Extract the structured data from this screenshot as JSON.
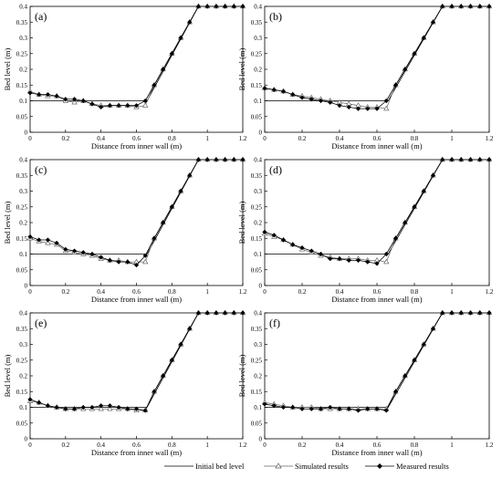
{
  "chart_data": [
    {
      "panel_label": "(a)",
      "type": "line",
      "xlabel": "Distance from inner wall (m)",
      "ylabel": "Bed level (m)",
      "xlim": [
        0,
        1.2
      ],
      "ylim": [
        0,
        0.4
      ],
      "x_ticks": [
        "0",
        "0.2",
        "0.4",
        "0.6",
        "0.8",
        "1",
        "1.2"
      ],
      "y_ticks": [
        "0",
        "0.05",
        "0.1",
        "0.15",
        "0.2",
        "0.25",
        "0.3",
        "0.35",
        "0.4"
      ],
      "series": [
        {
          "name": "Initial bed level",
          "x": [
            0,
            0.66,
            0.95,
            1.2
          ],
          "y": [
            0.1,
            0.1,
            0.4,
            0.4
          ]
        },
        {
          "name": "Simulated results",
          "x": [
            0,
            0.05,
            0.1,
            0.15,
            0.2,
            0.25,
            0.3,
            0.35,
            0.4,
            0.45,
            0.5,
            0.55,
            0.6,
            0.65,
            0.7,
            0.75,
            0.8,
            0.85,
            0.9,
            0.95,
            1.0,
            1.05,
            1.1,
            1.15,
            1.2
          ],
          "y": [
            0.13,
            0.12,
            0.115,
            0.115,
            0.1,
            0.095,
            0.1,
            0.09,
            0.085,
            0.085,
            0.085,
            0.085,
            0.08,
            0.085,
            0.15,
            0.2,
            0.25,
            0.3,
            0.35,
            0.4,
            0.4,
            0.4,
            0.4,
            0.4,
            0.4
          ]
        },
        {
          "name": "Measured results",
          "x": [
            0,
            0.05,
            0.1,
            0.15,
            0.2,
            0.25,
            0.3,
            0.35,
            0.4,
            0.45,
            0.5,
            0.55,
            0.6,
            0.65,
            0.7,
            0.75,
            0.8,
            0.85,
            0.9,
            0.95,
            1.0,
            1.05,
            1.1,
            1.15,
            1.2
          ],
          "y": [
            0.125,
            0.12,
            0.12,
            0.115,
            0.105,
            0.105,
            0.1,
            0.09,
            0.08,
            0.085,
            0.085,
            0.085,
            0.085,
            0.1,
            0.15,
            0.2,
            0.25,
            0.3,
            0.35,
            0.4,
            0.4,
            0.4,
            0.4,
            0.4,
            0.4
          ]
        }
      ]
    },
    {
      "panel_label": "(b)",
      "type": "line",
      "xlabel": "Distance from inner wall (m)",
      "ylabel": "Bed level (m)",
      "xlim": [
        0,
        1.2
      ],
      "ylim": [
        0,
        0.4
      ],
      "x_ticks": [
        "0",
        "0.2",
        "0.4",
        "0.6",
        "0.8",
        "1",
        "1.2"
      ],
      "y_ticks": [
        "0",
        "0.05",
        "0.1",
        "0.15",
        "0.2",
        "0.25",
        "0.3",
        "0.35",
        "0.4"
      ],
      "series": [
        {
          "name": "Initial bed level",
          "x": [
            0,
            0.66,
            0.95,
            1.2
          ],
          "y": [
            0.1,
            0.1,
            0.4,
            0.4
          ]
        },
        {
          "name": "Simulated results",
          "x": [
            0,
            0.05,
            0.1,
            0.15,
            0.2,
            0.25,
            0.3,
            0.35,
            0.4,
            0.45,
            0.5,
            0.55,
            0.6,
            0.65,
            0.7,
            0.75,
            0.8,
            0.85,
            0.9,
            0.95,
            1.0,
            1.05,
            1.1,
            1.15,
            1.2
          ],
          "y": [
            0.14,
            0.135,
            0.13,
            0.12,
            0.115,
            0.11,
            0.105,
            0.1,
            0.095,
            0.09,
            0.085,
            0.08,
            0.08,
            0.075,
            0.15,
            0.2,
            0.25,
            0.3,
            0.35,
            0.4,
            0.4,
            0.4,
            0.4,
            0.4,
            0.4
          ]
        },
        {
          "name": "Measured results",
          "x": [
            0,
            0.05,
            0.1,
            0.15,
            0.2,
            0.25,
            0.3,
            0.35,
            0.4,
            0.45,
            0.5,
            0.55,
            0.6,
            0.65,
            0.7,
            0.75,
            0.8,
            0.85,
            0.9,
            0.95,
            1.0,
            1.05,
            1.1,
            1.15,
            1.2
          ],
          "y": [
            0.14,
            0.135,
            0.13,
            0.12,
            0.11,
            0.105,
            0.1,
            0.095,
            0.085,
            0.08,
            0.075,
            0.075,
            0.075,
            0.1,
            0.15,
            0.2,
            0.25,
            0.3,
            0.35,
            0.4,
            0.4,
            0.4,
            0.4,
            0.4,
            0.4
          ]
        }
      ]
    },
    {
      "panel_label": "(c)",
      "type": "line",
      "xlabel": "Distance from inner wall (m)",
      "ylabel": "Bed level (m)",
      "xlim": [
        0,
        1.2
      ],
      "ylim": [
        0,
        0.4
      ],
      "x_ticks": [
        "0",
        "0.2",
        "0.4",
        "0.6",
        "0.8",
        "1",
        "1.2"
      ],
      "y_ticks": [
        "0",
        "0.05",
        "0.1",
        "0.15",
        "0.2",
        "0.25",
        "0.3",
        "0.35",
        "0.4"
      ],
      "series": [
        {
          "name": "Initial bed level",
          "x": [
            0,
            0.66,
            0.95,
            1.2
          ],
          "y": [
            0.1,
            0.1,
            0.4,
            0.4
          ]
        },
        {
          "name": "Simulated results",
          "x": [
            0,
            0.05,
            0.1,
            0.15,
            0.2,
            0.25,
            0.3,
            0.35,
            0.4,
            0.45,
            0.5,
            0.55,
            0.6,
            0.65,
            0.7,
            0.75,
            0.8,
            0.85,
            0.9,
            0.95,
            1.0,
            1.05,
            1.1,
            1.15,
            1.2
          ],
          "y": [
            0.15,
            0.14,
            0.135,
            0.13,
            0.11,
            0.105,
            0.1,
            0.095,
            0.085,
            0.08,
            0.08,
            0.075,
            0.075,
            0.075,
            0.15,
            0.2,
            0.25,
            0.3,
            0.35,
            0.4,
            0.4,
            0.4,
            0.4,
            0.4,
            0.4
          ]
        },
        {
          "name": "Measured results",
          "x": [
            0,
            0.05,
            0.1,
            0.15,
            0.2,
            0.25,
            0.3,
            0.35,
            0.4,
            0.45,
            0.5,
            0.55,
            0.6,
            0.65,
            0.7,
            0.75,
            0.8,
            0.85,
            0.9,
            0.95,
            1.0,
            1.05,
            1.1,
            1.15,
            1.2
          ],
          "y": [
            0.155,
            0.145,
            0.145,
            0.135,
            0.115,
            0.11,
            0.105,
            0.1,
            0.09,
            0.08,
            0.075,
            0.075,
            0.065,
            0.095,
            0.15,
            0.2,
            0.25,
            0.3,
            0.35,
            0.4,
            0.4,
            0.4,
            0.4,
            0.4,
            0.4
          ]
        }
      ]
    },
    {
      "panel_label": "(d)",
      "type": "line",
      "xlabel": "Distance from inner wall (m)",
      "ylabel": "Bed level (m)",
      "xlim": [
        0,
        1.2
      ],
      "ylim": [
        0,
        0.4
      ],
      "x_ticks": [
        "0",
        "0.2",
        "0.4",
        "0.6",
        "0.8",
        "1",
        "1.2"
      ],
      "y_ticks": [
        "0",
        "0.05",
        "0.1",
        "0.15",
        "0.2",
        "0.25",
        "0.3",
        "0.35",
        "0.4"
      ],
      "series": [
        {
          "name": "Initial bed level",
          "x": [
            0,
            0.66,
            0.95,
            1.2
          ],
          "y": [
            0.1,
            0.1,
            0.4,
            0.4
          ]
        },
        {
          "name": "Simulated results",
          "x": [
            0,
            0.05,
            0.1,
            0.15,
            0.2,
            0.25,
            0.3,
            0.35,
            0.4,
            0.45,
            0.5,
            0.55,
            0.6,
            0.65,
            0.7,
            0.75,
            0.8,
            0.85,
            0.9,
            0.95,
            1.0,
            1.05,
            1.1,
            1.15,
            1.2
          ],
          "y": [
            0.165,
            0.155,
            0.145,
            0.13,
            0.115,
            0.105,
            0.095,
            0.09,
            0.085,
            0.085,
            0.085,
            0.08,
            0.08,
            0.075,
            0.15,
            0.2,
            0.25,
            0.3,
            0.35,
            0.4,
            0.4,
            0.4,
            0.4,
            0.4,
            0.4
          ]
        },
        {
          "name": "Measured results",
          "x": [
            0,
            0.05,
            0.1,
            0.15,
            0.2,
            0.25,
            0.3,
            0.35,
            0.4,
            0.45,
            0.5,
            0.55,
            0.6,
            0.65,
            0.7,
            0.75,
            0.8,
            0.85,
            0.9,
            0.95,
            1.0,
            1.05,
            1.1,
            1.15,
            1.2
          ],
          "y": [
            0.17,
            0.16,
            0.145,
            0.13,
            0.12,
            0.11,
            0.1,
            0.085,
            0.085,
            0.08,
            0.08,
            0.075,
            0.07,
            0.1,
            0.15,
            0.2,
            0.25,
            0.3,
            0.35,
            0.4,
            0.4,
            0.4,
            0.4,
            0.4,
            0.4
          ]
        }
      ]
    },
    {
      "panel_label": "(e)",
      "type": "line",
      "xlabel": "Distance from inner wall (m)",
      "ylabel": "Bed level (m)",
      "xlim": [
        0,
        1.2
      ],
      "ylim": [
        0,
        0.4
      ],
      "x_ticks": [
        "0",
        "0.2",
        "0.4",
        "0.6",
        "0.8",
        "1",
        "1.2"
      ],
      "y_ticks": [
        "0",
        "0.05",
        "0.1",
        "0.15",
        "0.2",
        "0.25",
        "0.3",
        "0.35",
        "0.4"
      ],
      "series": [
        {
          "name": "Initial bed level",
          "x": [
            0,
            0.66,
            0.95,
            1.2
          ],
          "y": [
            0.1,
            0.1,
            0.4,
            0.4
          ]
        },
        {
          "name": "Simulated results",
          "x": [
            0,
            0.05,
            0.1,
            0.15,
            0.2,
            0.25,
            0.3,
            0.35,
            0.4,
            0.45,
            0.5,
            0.55,
            0.6,
            0.65,
            0.7,
            0.75,
            0.8,
            0.85,
            0.9,
            0.95,
            1.0,
            1.05,
            1.1,
            1.15,
            1.2
          ],
          "y": [
            0.12,
            0.115,
            0.105,
            0.1,
            0.095,
            0.095,
            0.095,
            0.095,
            0.095,
            0.095,
            0.095,
            0.095,
            0.09,
            0.09,
            0.15,
            0.2,
            0.25,
            0.3,
            0.35,
            0.4,
            0.4,
            0.4,
            0.4,
            0.4,
            0.4
          ]
        },
        {
          "name": "Measured results",
          "x": [
            0,
            0.05,
            0.1,
            0.15,
            0.2,
            0.25,
            0.3,
            0.35,
            0.4,
            0.45,
            0.5,
            0.55,
            0.6,
            0.65,
            0.7,
            0.75,
            0.8,
            0.85,
            0.9,
            0.95,
            1.0,
            1.05,
            1.1,
            1.15,
            1.2
          ],
          "y": [
            0.125,
            0.115,
            0.105,
            0.1,
            0.095,
            0.095,
            0.1,
            0.1,
            0.105,
            0.105,
            0.1,
            0.095,
            0.095,
            0.09,
            0.15,
            0.2,
            0.25,
            0.3,
            0.35,
            0.4,
            0.4,
            0.4,
            0.4,
            0.4,
            0.4
          ]
        }
      ]
    },
    {
      "panel_label": "(f)",
      "type": "line",
      "xlabel": "Distance from inner wall (m)",
      "ylabel": "Bed level (m)",
      "xlim": [
        0,
        1.2
      ],
      "ylim": [
        0,
        0.4
      ],
      "x_ticks": [
        "0",
        "0.2",
        "0.4",
        "0.6",
        "0.8",
        "1",
        "1.2"
      ],
      "y_ticks": [
        "0",
        "0.05",
        "0.1",
        "0.15",
        "0.2",
        "0.25",
        "0.3",
        "0.35",
        "0.4"
      ],
      "series": [
        {
          "name": "Initial bed level",
          "x": [
            0,
            0.66,
            0.95,
            1.2
          ],
          "y": [
            0.1,
            0.1,
            0.4,
            0.4
          ]
        },
        {
          "name": "Simulated results",
          "x": [
            0,
            0.05,
            0.1,
            0.15,
            0.2,
            0.25,
            0.3,
            0.35,
            0.4,
            0.45,
            0.5,
            0.55,
            0.6,
            0.65,
            0.7,
            0.75,
            0.8,
            0.85,
            0.9,
            0.95,
            1.0,
            1.05,
            1.1,
            1.15,
            1.2
          ],
          "y": [
            0.115,
            0.11,
            0.105,
            0.1,
            0.1,
            0.1,
            0.095,
            0.095,
            0.095,
            0.095,
            0.095,
            0.095,
            0.095,
            0.095,
            0.15,
            0.2,
            0.25,
            0.3,
            0.35,
            0.4,
            0.4,
            0.4,
            0.4,
            0.4,
            0.4
          ]
        },
        {
          "name": "Measured results",
          "x": [
            0,
            0.05,
            0.1,
            0.15,
            0.2,
            0.25,
            0.3,
            0.35,
            0.4,
            0.45,
            0.5,
            0.55,
            0.6,
            0.65,
            0.7,
            0.75,
            0.8,
            0.85,
            0.9,
            0.95,
            1.0,
            1.05,
            1.1,
            1.15,
            1.2
          ],
          "y": [
            0.11,
            0.105,
            0.1,
            0.1,
            0.095,
            0.095,
            0.095,
            0.1,
            0.095,
            0.095,
            0.09,
            0.095,
            0.095,
            0.09,
            0.15,
            0.2,
            0.25,
            0.3,
            0.35,
            0.4,
            0.4,
            0.4,
            0.4,
            0.4,
            0.4
          ]
        }
      ]
    }
  ],
  "legend": {
    "initial_label": "Initial bed level",
    "simulated_label": "Simulated results",
    "measured_label": "Measured results"
  }
}
